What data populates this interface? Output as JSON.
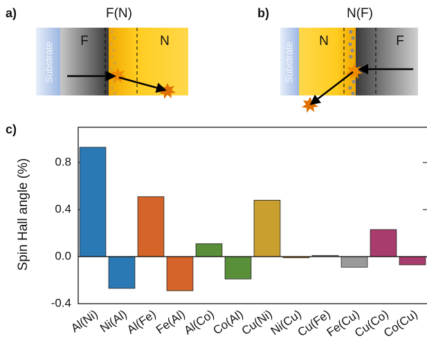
{
  "panels": [
    {
      "label": "a)",
      "title": "F(N)",
      "layers": [
        "Substrate",
        "F",
        "N"
      ]
    },
    {
      "label": "b)",
      "title": "N(F)",
      "layers": [
        "Substrate",
        "N",
        "F"
      ]
    }
  ],
  "chart_data": {
    "type": "bar",
    "panel_label": "c)",
    "y_label": "Spin Hall angle (%)",
    "categories": [
      "Al(Ni)",
      "Ni(Al)",
      "Al(Fe)",
      "Fe(Al)",
      "Al(Co)",
      "Co(Al)",
      "Cu(Ni)",
      "Ni(Cu)",
      "Cu(Fe)",
      "Fe(Cu)",
      "Cu(Co)",
      "Co(Cu)"
    ],
    "values": [
      0.93,
      -0.27,
      0.51,
      -0.29,
      0.11,
      -0.19,
      0.48,
      -0.01,
      0.01,
      -0.09,
      0.23,
      -0.07
    ],
    "colors": [
      "#2a78b4",
      "#2a78b4",
      "#d4642a",
      "#d4642a",
      "#5a8f3a",
      "#5a8f3a",
      "#c9a030",
      "#d48a2a",
      "#9a9a9a",
      "#9a9a9a",
      "#a83c6c",
      "#a83c6c"
    ],
    "ylim": [
      -0.4,
      1.1
    ],
    "yticks": [
      -0.4,
      {
        "value": 0,
        "label": "0.0"
      },
      0.4,
      0.8
    ]
  }
}
